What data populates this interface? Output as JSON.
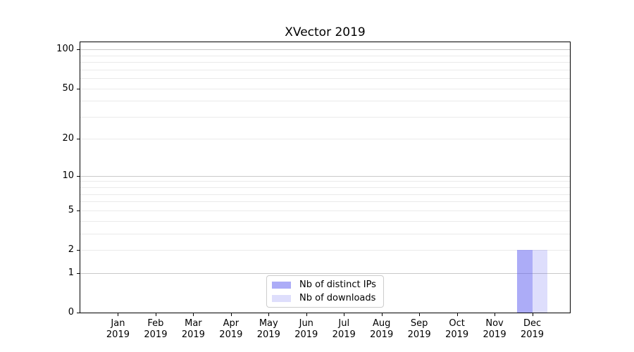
{
  "chart_data": {
    "type": "bar",
    "title": "XVector 2019",
    "categories": [
      "Jan",
      "Feb",
      "Mar",
      "Apr",
      "May",
      "Jun",
      "Jul",
      "Aug",
      "Sep",
      "Oct",
      "Nov",
      "Dec"
    ],
    "category_year": "2019",
    "series": [
      {
        "name": "Nb of distinct IPs",
        "values": [
          0,
          0,
          0,
          0,
          0,
          0,
          0,
          0,
          0,
          0,
          0,
          2
        ],
        "color": "rgba(90,90,240,0.5)"
      },
      {
        "name": "Nb of downloads",
        "values": [
          0,
          0,
          0,
          0,
          0,
          0,
          0,
          0,
          0,
          0,
          0,
          2
        ],
        "color": "rgba(90,90,240,0.2)"
      }
    ],
    "y_scale": "log1p",
    "yticks": [
      0,
      1,
      2,
      5,
      10,
      20,
      50,
      100
    ],
    "ylim": [
      0,
      115
    ],
    "gridlines": {
      "major": [
        1,
        10,
        100
      ],
      "minor": [
        2,
        3,
        4,
        5,
        6,
        7,
        8,
        9,
        20,
        30,
        40,
        50,
        60,
        70,
        80,
        90
      ]
    },
    "grid": "horizontal",
    "legend_position": "lower-center"
  },
  "colors": {
    "bar_distinct_ips_on_white": "#aaaaf7",
    "bar_downloads_on_white": "#dcdcfb",
    "grid_major": "#c9c9c9",
    "grid_minor": "#eaeaea",
    "spine": "#000000",
    "background": "#ffffff"
  }
}
